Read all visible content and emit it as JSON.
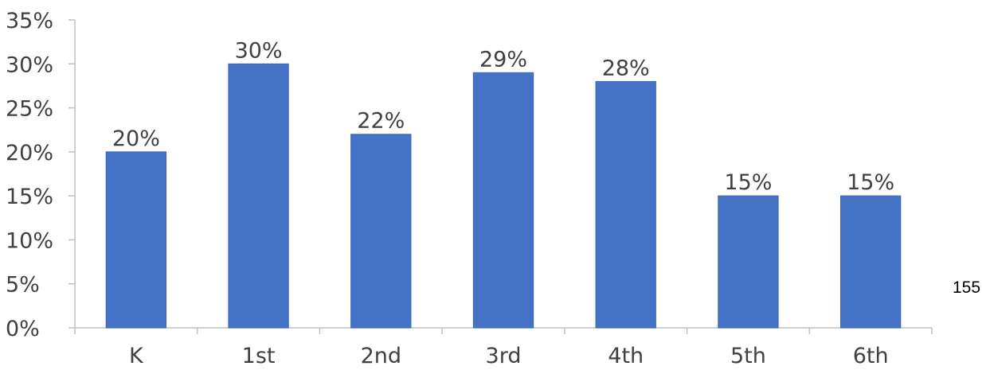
{
  "chart_data": {
    "type": "bar",
    "categories": [
      "K",
      "1st",
      "2nd",
      "3rd",
      "4th",
      "5th",
      "6th"
    ],
    "values": [
      20,
      30,
      22,
      29,
      28,
      15,
      15
    ],
    "data_labels": [
      "20%",
      "30%",
      "22%",
      "29%",
      "28%",
      "15%",
      "15%"
    ],
    "y_tick_labels": [
      "0%",
      "5%",
      "10%",
      "15%",
      "20%",
      "25%",
      "30%",
      "35%"
    ],
    "y_ticks": [
      0,
      5,
      10,
      15,
      20,
      25,
      30,
      35
    ],
    "ylim": [
      0,
      35
    ],
    "title": "",
    "xlabel": "",
    "ylabel": "",
    "grid": false,
    "legend": "none",
    "colors": {
      "bar": "#4472C4",
      "axis": "#BFBFBF",
      "text": "#404040"
    }
  },
  "page_number": "155"
}
